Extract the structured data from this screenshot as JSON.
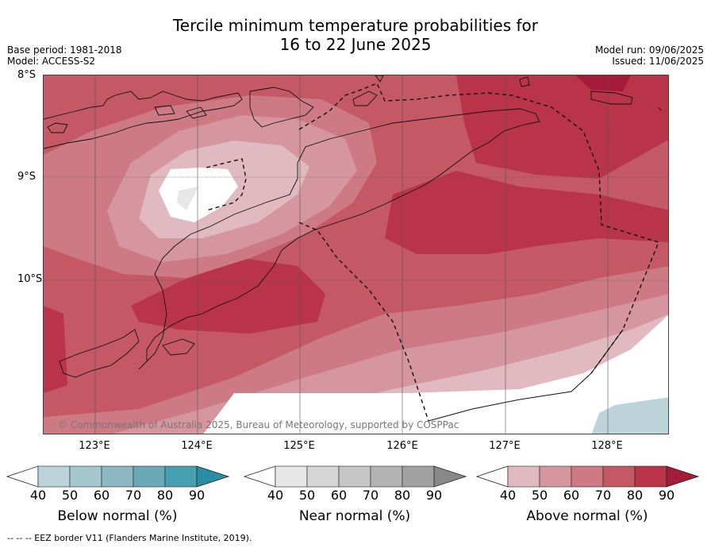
{
  "title_line1": "Tercile minimum temperature probabilities for",
  "title_line2": "16 to 22 June 2025",
  "base_period": "Base period: 1981-2018",
  "model": "Model: ACCESS-S2",
  "model_run": "Model run: 09/06/2025",
  "issued": "Issued: 11/06/2025",
  "lat_labels": [
    "8°S",
    "9°S",
    "10°S"
  ],
  "lon_labels": [
    "123°E",
    "124°E",
    "125°E",
    "126°E",
    "127°E",
    "128°E"
  ],
  "copyright": "© Commonwealth of Australia 2025, Bureau of Meteorology, supported by COSPPac",
  "colorbars": [
    {
      "title": "Below normal (%)",
      "ticks": [
        "40",
        "50",
        "60",
        "70",
        "80",
        "90"
      ],
      "colors": [
        "#bcd3da",
        "#a5c8cf",
        "#8bb8c3",
        "#6aa8b6",
        "#47a0b2",
        "#2a8ea3"
      ]
    },
    {
      "title": "Near normal (%)",
      "ticks": [
        "40",
        "50",
        "60",
        "70",
        "80",
        "90"
      ],
      "colors": [
        "#e7e7e7",
        "#d6d6d6",
        "#c6c6c6",
        "#b3b3b3",
        "#a2a2a2",
        "#888888"
      ]
    },
    {
      "title": "Above normal (%)",
      "ticks": [
        "40",
        "50",
        "60",
        "70",
        "80",
        "90"
      ],
      "colors": [
        "#e1b9c0",
        "#d6969f",
        "#cd7a84",
        "#c45864",
        "#b93448",
        "#a41c3a"
      ]
    }
  ],
  "footer": "--  --  -- EEZ border V11 (Flanders Marine Institute, 2019)."
}
